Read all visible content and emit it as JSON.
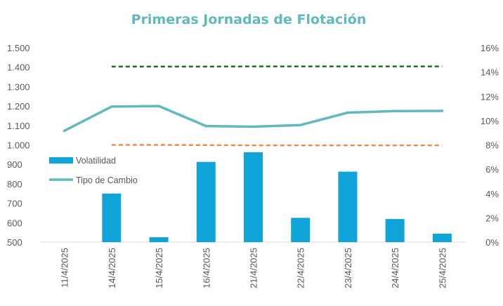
{
  "chart_data": {
    "type": "bar",
    "title": "Primeras Jornadas de Flotación",
    "categories": [
      "11/4/2025",
      "14/4/2025",
      "15/4/2025",
      "16/4/2025",
      "21/4/2025",
      "22/4/2025",
      "23/4/2025",
      "24/4/2025",
      "25/4/2025"
    ],
    "left_axis": {
      "ylim": [
        500,
        1500
      ],
      "ticks": [
        "500",
        "600",
        "700",
        "800",
        "900",
        "1.000",
        "1.100",
        "1.200",
        "1.300",
        "1.400",
        "1.500"
      ]
    },
    "right_axis": {
      "ylim": [
        0,
        16
      ],
      "ticks": [
        "0%",
        "2%",
        "4%",
        "6%",
        "8%",
        "10%",
        "12%",
        "14%",
        "16%"
      ]
    },
    "series": [
      {
        "name": "Volatilidad",
        "kind": "bar",
        "axis": "right",
        "color": "#0fa3d7",
        "values": [
          null,
          4.0,
          0.4,
          6.6,
          7.4,
          2.0,
          5.8,
          1.9,
          0.7
        ]
      },
      {
        "name": "Tipo de Cambio",
        "kind": "line",
        "axis": "left",
        "color": "#5fb9bd",
        "values": [
          1073,
          1197,
          1200,
          1097,
          1094,
          1102,
          1166,
          1174,
          1175
        ]
      }
    ],
    "reference_lines": [
      {
        "kind": "dashed",
        "axis": "left",
        "color": "#1f6b1f",
        "values": [
          null,
          1403,
          1403,
          1403,
          1404,
          1404,
          1404,
          1404,
          1404
        ]
      },
      {
        "kind": "dashed",
        "axis": "left",
        "color": "#ef8a4c",
        "values": [
          null,
          1000,
          1000,
          999,
          998,
          998,
          998,
          998,
          998
        ]
      }
    ],
    "legend": {
      "placement": "left-middle"
    }
  }
}
